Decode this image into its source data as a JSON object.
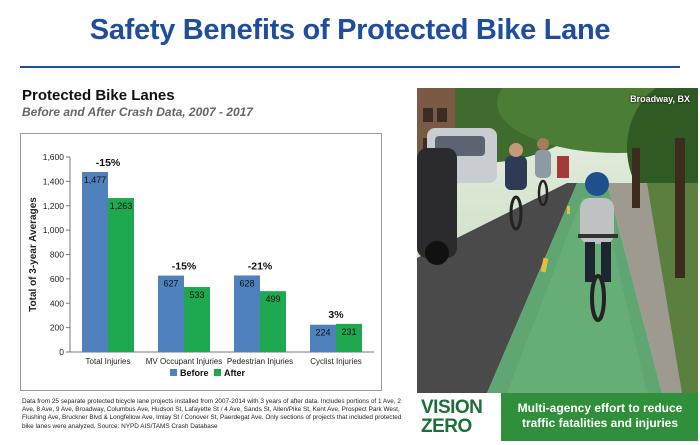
{
  "slide": {
    "title": "Safety Benefits of Protected Bike Lane"
  },
  "chart_data": {
    "type": "bar",
    "title": "Protected Bike Lanes",
    "subtitle": "Before and After Crash Data, 2007 - 2017",
    "ylabel": "Total of 3-year Averages",
    "xlabel": "",
    "ylim": [
      0,
      1600
    ],
    "yticks": [
      0,
      200,
      400,
      600,
      800,
      1000,
      1200,
      1400,
      1600
    ],
    "ytick_labels": [
      "0",
      "200",
      "400",
      "600",
      "800",
      "1,000",
      "1,200",
      "1,400",
      "1,600"
    ],
    "categories": [
      "Total Injuries",
      "MV Occupant Injuries",
      "Pedestrian Injuries",
      "Cyclist Injuries"
    ],
    "series": [
      {
        "name": "Before",
        "color": "#4f81bd",
        "values": [
          1477,
          627,
          628,
          224
        ],
        "labels": [
          "1,477",
          "627",
          "628",
          "224"
        ]
      },
      {
        "name": "After",
        "color": "#1ea84f",
        "values": [
          1263,
          533,
          499,
          231
        ],
        "labels": [
          "1,263",
          "533",
          "499",
          "231"
        ]
      }
    ],
    "change_labels": [
      "-15%",
      "-15%",
      "-21%",
      "3%"
    ],
    "legend": "bottom",
    "grid": false
  },
  "footnote": "Data from 25 separate protected bicycle lane projects installed from 2007-2014 with 3 years of after data. Includes portions of 1 Ave, 2 Ave, 8 Ave, 9 Ave, Broadway, Columbus Ave, Hudson St, Lafayette St / 4 Ave, Sands St, Allen/Pike St, Kent Ave, Prospect Park West, Flushing Ave, Bruckner Blvd & Longfellow Ave, Imlay St / Conover St, Paerdegat Ave. Only sections of projects that included protected bike lanes were analyzed. Source: NYPD AIS/TAMS Crash Database",
  "photo": {
    "caption": "Broadway, BX"
  },
  "banner": {
    "logo_line1": "VISION",
    "logo_line2": "ZERO",
    "tagline": "Multi-agency effort to reduce traffic fatalities and injuries"
  }
}
